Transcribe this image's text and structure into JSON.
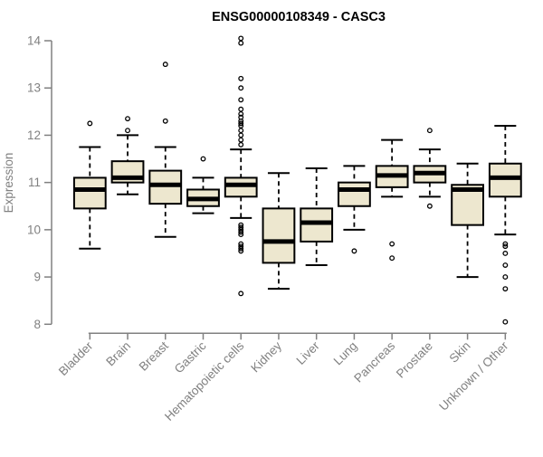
{
  "chart_data": {
    "type": "box",
    "title": "ENSG00000108349 - CASC3",
    "ylabel": "Expression",
    "xlabel": "",
    "ylim": [
      8,
      14
    ],
    "yticks": [
      8,
      9,
      10,
      11,
      12,
      13,
      14
    ],
    "grid": false,
    "legend": false,
    "categories": [
      {
        "label": "Bladder",
        "whisker_low": 9.6,
        "q1": 10.45,
        "median": 10.85,
        "q3": 11.1,
        "whisker_high": 11.75,
        "outliers": [
          12.25
        ]
      },
      {
        "label": "Brain",
        "whisker_low": 10.75,
        "q1": 11.0,
        "median": 11.1,
        "q3": 11.45,
        "whisker_high": 12.0,
        "outliers": [
          12.35,
          12.1
        ]
      },
      {
        "label": "Breast",
        "whisker_low": 9.85,
        "q1": 10.55,
        "median": 10.95,
        "q3": 11.25,
        "whisker_high": 11.75,
        "outliers": [
          13.5,
          12.3
        ]
      },
      {
        "label": "Gastric",
        "whisker_low": 10.35,
        "q1": 10.5,
        "median": 10.65,
        "q3": 10.85,
        "whisker_high": 11.1,
        "outliers": [
          11.5
        ]
      },
      {
        "label": "Hematopoietic cells",
        "whisker_low": 10.25,
        "q1": 10.7,
        "median": 10.95,
        "q3": 11.1,
        "whisker_high": 11.7,
        "outliers": [
          14.05,
          13.95,
          13.2,
          13.0,
          12.75,
          12.55,
          12.45,
          12.38,
          12.3,
          12.25,
          12.2,
          12.1,
          12.0,
          11.9,
          11.8,
          10.1,
          10.05,
          10.0,
          9.95,
          9.9,
          9.7,
          9.65,
          9.6,
          9.55,
          8.65
        ]
      },
      {
        "label": "Kidney",
        "whisker_low": 8.75,
        "q1": 9.3,
        "median": 9.75,
        "q3": 10.45,
        "whisker_high": 11.2,
        "outliers": []
      },
      {
        "label": "Liver",
        "whisker_low": 9.25,
        "q1": 9.75,
        "median": 10.15,
        "q3": 10.45,
        "whisker_high": 11.3,
        "outliers": []
      },
      {
        "label": "Lung",
        "whisker_low": 10.0,
        "q1": 10.5,
        "median": 10.85,
        "q3": 11.0,
        "whisker_high": 11.35,
        "outliers": [
          9.55
        ]
      },
      {
        "label": "Pancreas",
        "whisker_low": 10.7,
        "q1": 10.9,
        "median": 11.15,
        "q3": 11.35,
        "whisker_high": 11.9,
        "outliers": [
          9.7,
          9.4
        ]
      },
      {
        "label": "Prostate",
        "whisker_low": 10.7,
        "q1": 11.0,
        "median": 11.2,
        "q3": 11.35,
        "whisker_high": 11.7,
        "outliers": [
          12.1,
          10.5
        ]
      },
      {
        "label": "Skin",
        "whisker_low": 9.0,
        "q1": 10.1,
        "median": 10.85,
        "q3": 10.95,
        "whisker_high": 11.4,
        "outliers": []
      },
      {
        "label": "Unknown / Other",
        "whisker_low": 9.9,
        "q1": 10.7,
        "median": 11.1,
        "q3": 11.4,
        "whisker_high": 12.2,
        "outliers": [
          9.7,
          9.65,
          9.5,
          9.25,
          9.0,
          8.75,
          8.05
        ]
      }
    ]
  },
  "style": {
    "background": "#FFFFFF",
    "box_fill": "#EDE7CF",
    "box_stroke": "#000000",
    "median_color": "#000000",
    "whisker_color": "#000000",
    "outlier_color": "#000000",
    "axis_color": "#808080",
    "label_color": "#808080",
    "title_color": "#000000"
  }
}
